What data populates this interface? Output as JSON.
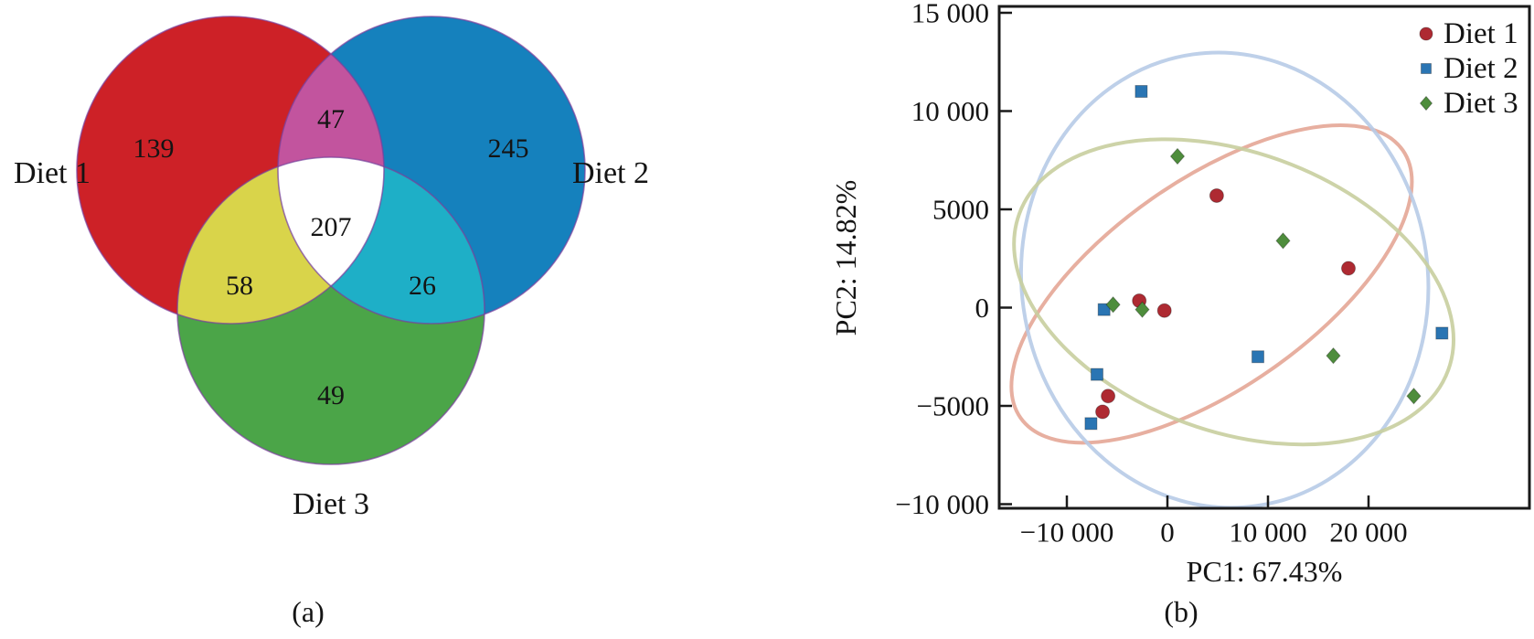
{
  "panel_a": {
    "caption": "(a)",
    "colors": {
      "set1": "#cd2127",
      "set2": "#1581bd",
      "set3": "#4ba548",
      "set1_set2": "#c2549e",
      "set1_set3": "#d9d44a",
      "set2_set3": "#1eafc7",
      "center": "#ffffff",
      "outline": "#7a3f9c"
    }
  },
  "panel_b": {
    "caption": "(b)"
  },
  "chart_data": [
    {
      "type": "venn",
      "title": "(a)",
      "sets": [
        "Diet 1",
        "Diet 2",
        "Diet 3"
      ],
      "regions": {
        "diet1_only": 139,
        "diet2_only": 245,
        "diet3_only": 49,
        "diet1_diet2": 47,
        "diet1_diet3": 58,
        "diet2_diet3": 26,
        "diet1_diet2_diet3": 207
      }
    },
    {
      "type": "scatter",
      "title": "(b)",
      "xlabel": "PC1: 67.43%",
      "ylabel": "PC2: 14.82%",
      "xlim": [
        -16700,
        36400
      ],
      "ylim": [
        -10250,
        15300
      ],
      "grid": false,
      "legend_position": "top-right",
      "x_ticks": {
        "values": [
          -10000,
          0,
          10000,
          20000
        ],
        "labels": [
          "−10 000",
          "0",
          "10 000",
          "20 000"
        ]
      },
      "y_ticks": {
        "values": [
          15000,
          10000,
          5000,
          0,
          -5000,
          -10000
        ],
        "labels": [
          "15 000",
          "10 000",
          "5000",
          "0",
          "−5000",
          "−10 000"
        ]
      },
      "series": [
        {
          "name": "Diet 1",
          "marker": "circle",
          "color": "#ae2a32",
          "points": [
            [
              4900,
              5700
            ],
            [
              18000,
              2000
            ],
            [
              -2800,
              350
            ],
            [
              -300,
              -150
            ],
            [
              -5900,
              -4500
            ],
            [
              -6450,
              -5300
            ]
          ],
          "ellipse": {
            "cx": 4400,
            "cy": 1200,
            "rx": 23200,
            "ry": 5300,
            "rotation_deg": -35,
            "color": "#e4a696"
          }
        },
        {
          "name": "Diet 2",
          "marker": "square",
          "color": "#2a75b3",
          "points": [
            [
              -2600,
              11000
            ],
            [
              -6300,
              -100
            ],
            [
              9000,
              -2500
            ],
            [
              -7000,
              -3400
            ],
            [
              -7600,
              -5900
            ],
            [
              27300,
              -1300
            ]
          ],
          "ellipse": {
            "cx": 5700,
            "cy": 1400,
            "rx": 20200,
            "ry": 11600,
            "rotation_deg": -8,
            "color": "#b7cbe7"
          }
        },
        {
          "name": "Diet 3",
          "marker": "diamond",
          "color": "#4e8d3c",
          "points": [
            [
              1000,
              7700
            ],
            [
              11500,
              3400
            ],
            [
              -5400,
              150
            ],
            [
              -2500,
              -100
            ],
            [
              16500,
              -2450
            ],
            [
              24500,
              -4500
            ]
          ],
          "ellipse": {
            "cx": 6600,
            "cy": 800,
            "rx": 22700,
            "ry": 7100,
            "rotation_deg": 20,
            "color": "#c8ce9e"
          }
        }
      ]
    }
  ]
}
